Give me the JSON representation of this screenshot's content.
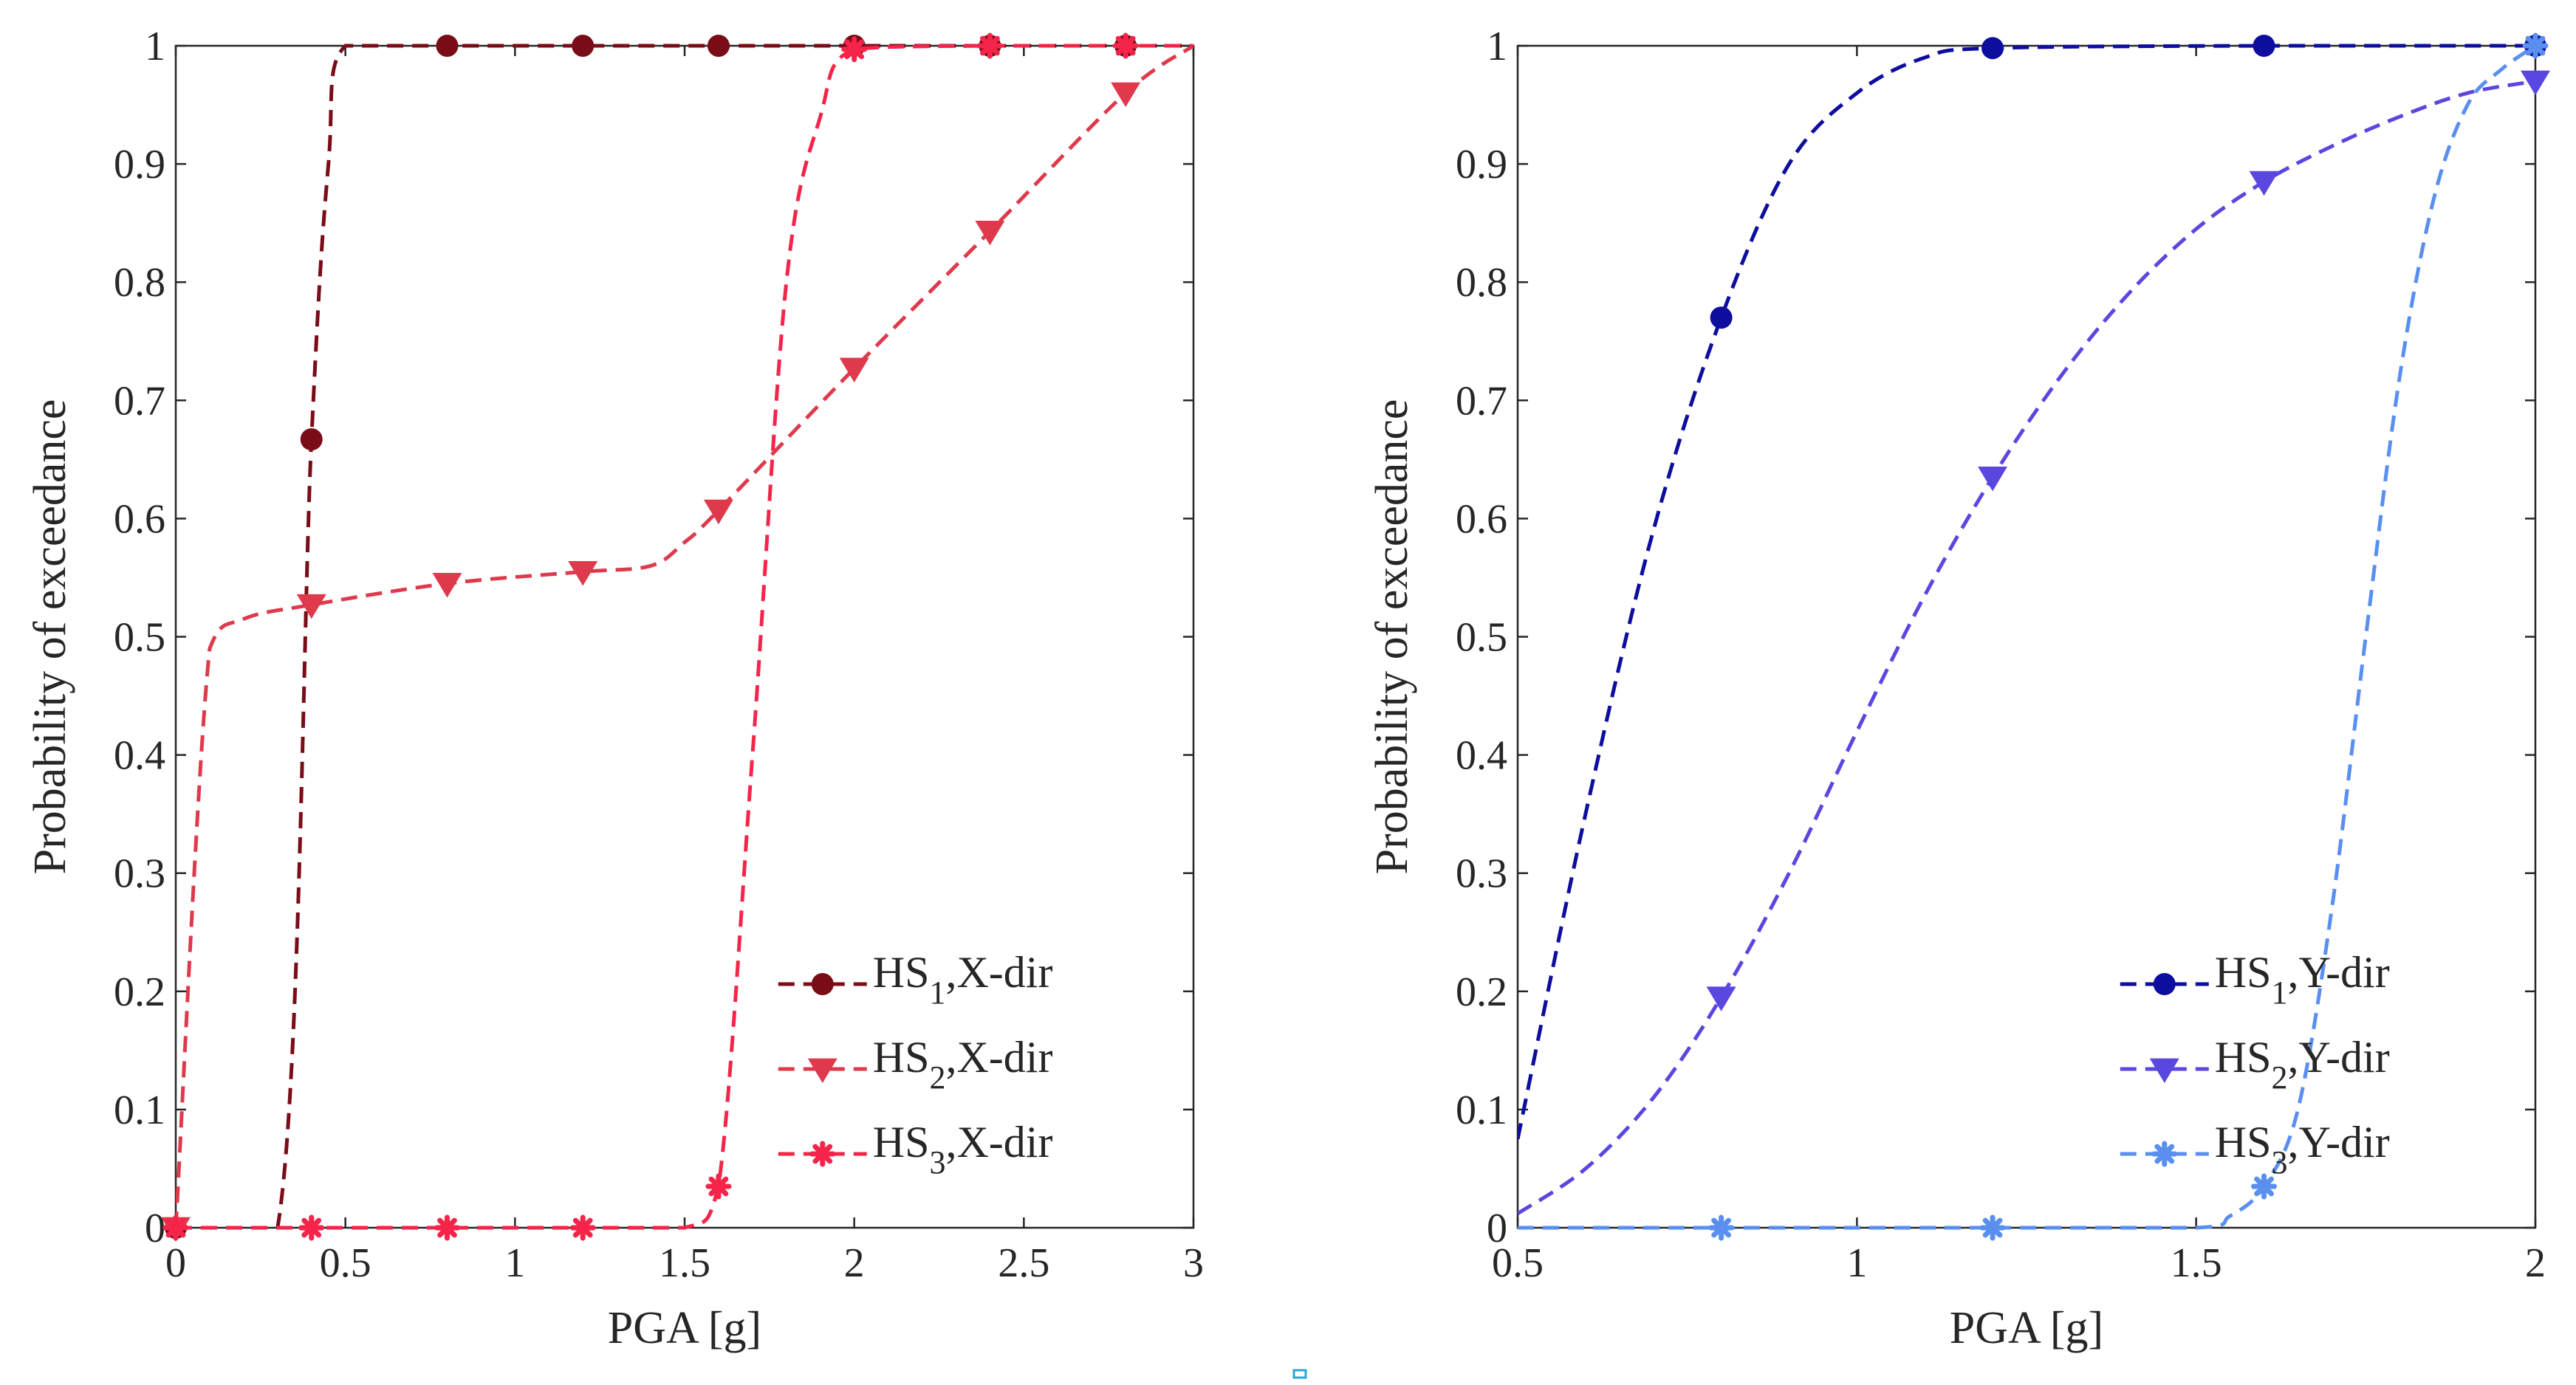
{
  "chart_data": [
    {
      "type": "line",
      "xlabel": "PGA [g]",
      "ylabel": "Probability of exceedance",
      "xlim": [
        0,
        3
      ],
      "ylim": [
        0,
        1
      ],
      "xticks": [
        0,
        0.5,
        1,
        1.5,
        2,
        2.5,
        3
      ],
      "xtick_labels": [
        "0",
        "0.5",
        "1",
        "1.5",
        "2",
        "2.5",
        "3"
      ],
      "yticks": [
        0,
        0.1,
        0.2,
        0.3,
        0.4,
        0.5,
        0.6,
        0.7,
        0.8,
        0.9,
        1
      ],
      "ytick_labels": [
        "0",
        "0.1",
        "0.2",
        "0.3",
        "0.4",
        "0.5",
        "0.6",
        "0.7",
        "0.8",
        "0.9",
        "1"
      ],
      "grid": false,
      "legend_position": "bottom-right",
      "series": [
        {
          "name": "HS1,X-dir",
          "label_main": "HS",
          "label_sub": "1",
          "label_suffix": ",X-dir",
          "color": "#7a0c18",
          "marker": "circle",
          "curve_x": [
            0,
            0.3,
            0.4,
            0.45,
            0.5,
            0.8,
            1.2,
            1.6,
            2.0,
            2.4,
            2.8,
            3.0
          ],
          "curve_y": [
            0,
            0,
            0.667,
            0.9,
            1.0,
            1.0,
            1.0,
            1.0,
            1.0,
            1.0,
            1.0,
            1.0
          ],
          "marker_x": [
            0,
            0.4,
            0.8,
            1.2,
            1.6,
            2.0,
            2.4,
            2.8
          ],
          "marker_y": [
            0,
            0.667,
            1.0,
            1.0,
            1.0,
            1.0,
            1.0,
            1.0
          ]
        },
        {
          "name": "HS2,X-dir",
          "label_main": "HS",
          "label_sub": "2",
          "label_suffix": ",X-dir",
          "color": "#de3a4c",
          "marker": "triangle-down",
          "curve_x": [
            0,
            0.1,
            0.2,
            0.4,
            0.8,
            1.2,
            1.4,
            1.5,
            1.6,
            2.0,
            2.4,
            2.8,
            3.0
          ],
          "curve_y": [
            0,
            0.49,
            0.515,
            0.527,
            0.545,
            0.555,
            0.56,
            0.58,
            0.607,
            0.727,
            0.843,
            0.96,
            1.0
          ],
          "marker_x": [
            0,
            0.4,
            0.8,
            1.2,
            1.6,
            2.0,
            2.4,
            2.8
          ],
          "marker_y": [
            0,
            0.527,
            0.545,
            0.555,
            0.607,
            0.727,
            0.843,
            0.96
          ]
        },
        {
          "name": "HS3,X-dir",
          "label_main": "HS",
          "label_sub": "3",
          "label_suffix": ",X-dir",
          "color": "#f5254a",
          "marker": "asterisk",
          "curve_x": [
            0,
            0.4,
            0.8,
            1.2,
            1.5,
            1.6,
            1.7,
            1.8,
            1.9,
            2.0,
            2.4,
            2.8,
            3.0
          ],
          "curve_y": [
            0,
            0,
            0,
            0,
            0,
            0.035,
            0.4,
            0.8,
            0.94,
            0.997,
            1.0,
            1.0,
            1.0
          ],
          "marker_x": [
            0,
            0.4,
            0.8,
            1.2,
            1.6,
            2.0,
            2.4,
            2.8
          ],
          "marker_y": [
            0,
            0,
            0,
            0,
            0.035,
            0.997,
            1.0,
            1.0
          ]
        }
      ]
    },
    {
      "type": "line",
      "xlabel": "PGA [g]",
      "ylabel": "Probability of exceedance",
      "xlim": [
        0.5,
        2
      ],
      "ylim": [
        0,
        1
      ],
      "xticks": [
        0.5,
        1,
        1.5,
        2
      ],
      "xtick_labels": [
        "0.5",
        "1",
        "1.5",
        "2"
      ],
      "yticks": [
        0,
        0.1,
        0.2,
        0.3,
        0.4,
        0.5,
        0.6,
        0.7,
        0.8,
        0.9,
        1
      ],
      "ytick_labels": [
        "0",
        "0.1",
        "0.2",
        "0.3",
        "0.4",
        "0.5",
        "0.6",
        "0.7",
        "0.8",
        "0.9",
        "1"
      ],
      "grid": false,
      "legend_position": "bottom-right",
      "series": [
        {
          "name": "HS1,Y-dir",
          "label_main": "HS",
          "label_sub": "1",
          "label_suffix": ",Y-dir",
          "color": "#0d0d9e",
          "marker": "circle",
          "curve_x": [
            0.5,
            0.6,
            0.7,
            0.8,
            0.9,
            1.0,
            1.1,
            1.2,
            1.6,
            2.0
          ],
          "curve_y": [
            0.075,
            0.35,
            0.59,
            0.77,
            0.9,
            0.96,
            0.99,
            0.998,
            1.0,
            1.0
          ],
          "marker_x": [
            0.8,
            1.2,
            1.6,
            2.0
          ],
          "marker_y": [
            0.77,
            0.998,
            1.0,
            1.0
          ]
        },
        {
          "name": "HS2,Y-dir",
          "label_main": "HS",
          "label_sub": "2",
          "label_suffix": ",Y-dir",
          "color": "#5a47e0",
          "marker": "triangle-down",
          "curve_x": [
            0.5,
            0.6,
            0.7,
            0.8,
            0.9,
            1.0,
            1.1,
            1.2,
            1.3,
            1.4,
            1.5,
            1.6,
            1.7,
            1.8,
            1.9,
            2.0
          ],
          "curve_y": [
            0.012,
            0.05,
            0.11,
            0.195,
            0.3,
            0.42,
            0.535,
            0.635,
            0.72,
            0.79,
            0.845,
            0.885,
            0.915,
            0.94,
            0.96,
            0.97
          ],
          "marker_x": [
            0.8,
            1.2,
            1.6,
            2.0
          ],
          "marker_y": [
            0.195,
            0.635,
            0.885,
            0.97
          ]
        },
        {
          "name": "HS3,Y-dir",
          "label_main": "HS",
          "label_sub": "3",
          "label_suffix": ",Y-dir",
          "color": "#5a8ff0",
          "marker": "asterisk",
          "curve_x": [
            0.5,
            0.8,
            1.2,
            1.5,
            1.55,
            1.6,
            1.65,
            1.7,
            1.75,
            1.8,
            1.85,
            1.9,
            1.95,
            2.0
          ],
          "curve_y": [
            0,
            0,
            0,
            0,
            0.01,
            0.035,
            0.1,
            0.27,
            0.5,
            0.72,
            0.87,
            0.95,
            0.98,
            1.0
          ],
          "marker_x": [
            0.8,
            1.2,
            1.6,
            2.0
          ],
          "marker_y": [
            0,
            0,
            0.035,
            1.0
          ]
        }
      ]
    }
  ]
}
